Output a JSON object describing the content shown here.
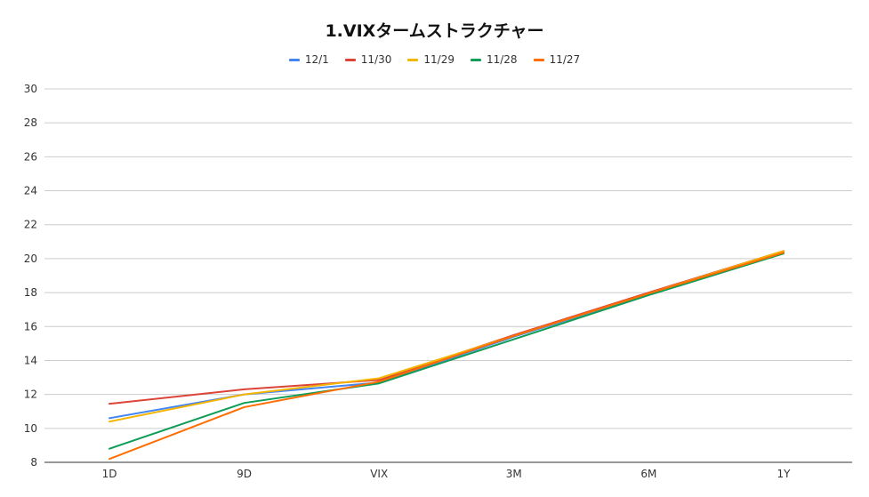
{
  "chart_data": {
    "type": "line",
    "title": "1.VIXタームストラクチャー",
    "xlabel": "",
    "ylabel": "",
    "categories": [
      "1D",
      "9D",
      "VIX",
      "3M",
      "6M",
      "1Y"
    ],
    "ylim": [
      8,
      30
    ],
    "yticks": [
      8,
      10,
      12,
      14,
      16,
      18,
      20,
      22,
      24,
      26,
      28,
      30
    ],
    "grid": true,
    "legend_position": "top",
    "series": [
      {
        "name": "12/1",
        "color": "#4285f4",
        "values": [
          10.6,
          12.0,
          12.7,
          15.4,
          17.9,
          20.4
        ]
      },
      {
        "name": "11/30",
        "color": "#db4437",
        "values": [
          11.45,
          12.3,
          12.85,
          15.5,
          18.0,
          20.45
        ]
      },
      {
        "name": "11/29",
        "color": "#f4b400",
        "values": [
          10.4,
          12.0,
          12.95,
          15.45,
          17.95,
          20.45
        ]
      },
      {
        "name": "11/28",
        "color": "#0f9d58",
        "values": [
          8.8,
          11.5,
          12.65,
          15.25,
          17.85,
          20.3
        ]
      },
      {
        "name": "11/27",
        "color": "#ff6d00",
        "values": [
          8.2,
          11.25,
          12.75,
          15.45,
          17.95,
          20.35
        ]
      }
    ]
  }
}
